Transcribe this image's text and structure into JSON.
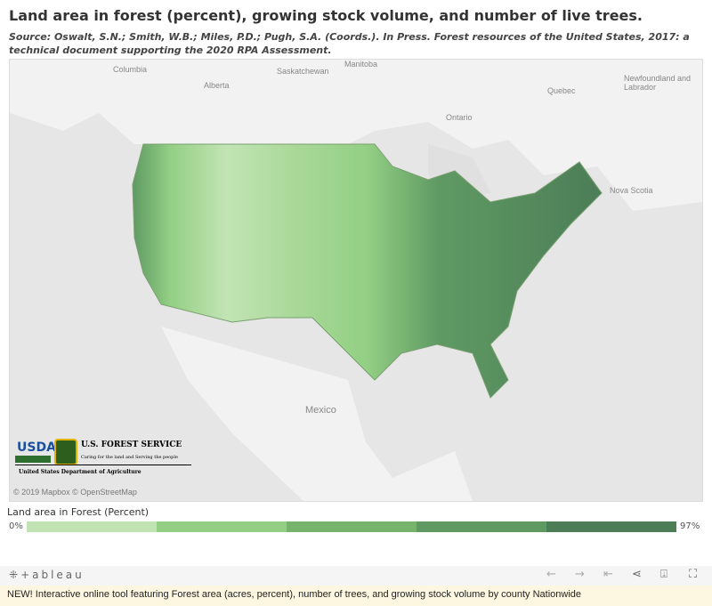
{
  "title": "Land area in forest (percent), growing stock volume, and number of live trees.",
  "source": "Source: Oswalt, S.N.; Smith, W.B.; Miles, P.D.; Pugh, S.A. (Coords.). In Press. Forest resources of the United States, 2017: a technical document supporting the 2020 RPA Assessment.",
  "map": {
    "labels": {
      "columbia": "Columbia",
      "alberta": "Alberta",
      "saskatchewan": "Saskatchewan",
      "manitoba": "Manitoba",
      "ontario": "Ontario",
      "quebec": "Quebec",
      "newfoundland": "Newfoundland and Labrador",
      "nova_scotia": "Nova Scotia",
      "mexico": "Mexico"
    },
    "logo": {
      "usda": "USDA",
      "agency": "U.S. FOREST SERVICE",
      "motto": "Caring for the land and Serving the people",
      "department": "United States Department of Agriculture"
    },
    "attribution": "© 2019 Mapbox © OpenStreetMap"
  },
  "legend": {
    "title": "Land area in Forest (Percent)",
    "min": "0%",
    "max": "97%",
    "colors": [
      "#c2e4b4",
      "#93cf84",
      "#76b46c",
      "#5f9a63",
      "#4c7d57"
    ]
  },
  "toolbar": {
    "brand": "+ableau",
    "icons": [
      "undo-icon",
      "redo-icon",
      "revert-icon",
      "share-icon",
      "download-icon",
      "fullscreen-icon"
    ]
  },
  "banner": "NEW! Interactive online tool featuring Forest area (acres, percent), number of trees, and growing stock volume by county Nationwide"
}
